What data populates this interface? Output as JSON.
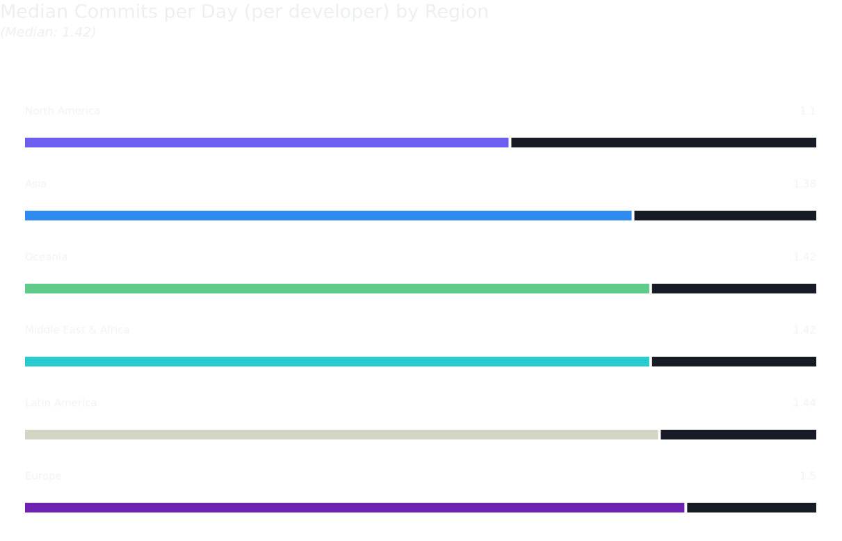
{
  "chart_data": {
    "type": "progress-bar",
    "title": "Median Commits per Day (per developer) by Region",
    "subtitle": "(Median: 1.42)",
    "categories": [
      "North America",
      "Asia",
      "Oceania",
      "Middle East & Africa",
      "Latin America",
      "Europe"
    ],
    "values": [
      1.1,
      1.38,
      1.42,
      1.42,
      1.44,
      1.5
    ],
    "colors": [
      "#6c5ff0",
      "#2f8bef",
      "#5ecb8a",
      "#28cbd0",
      "#d4d5c4",
      "#6d22b4"
    ],
    "track_color": "#161b26",
    "xlim": [
      0,
      1.8
    ]
  }
}
